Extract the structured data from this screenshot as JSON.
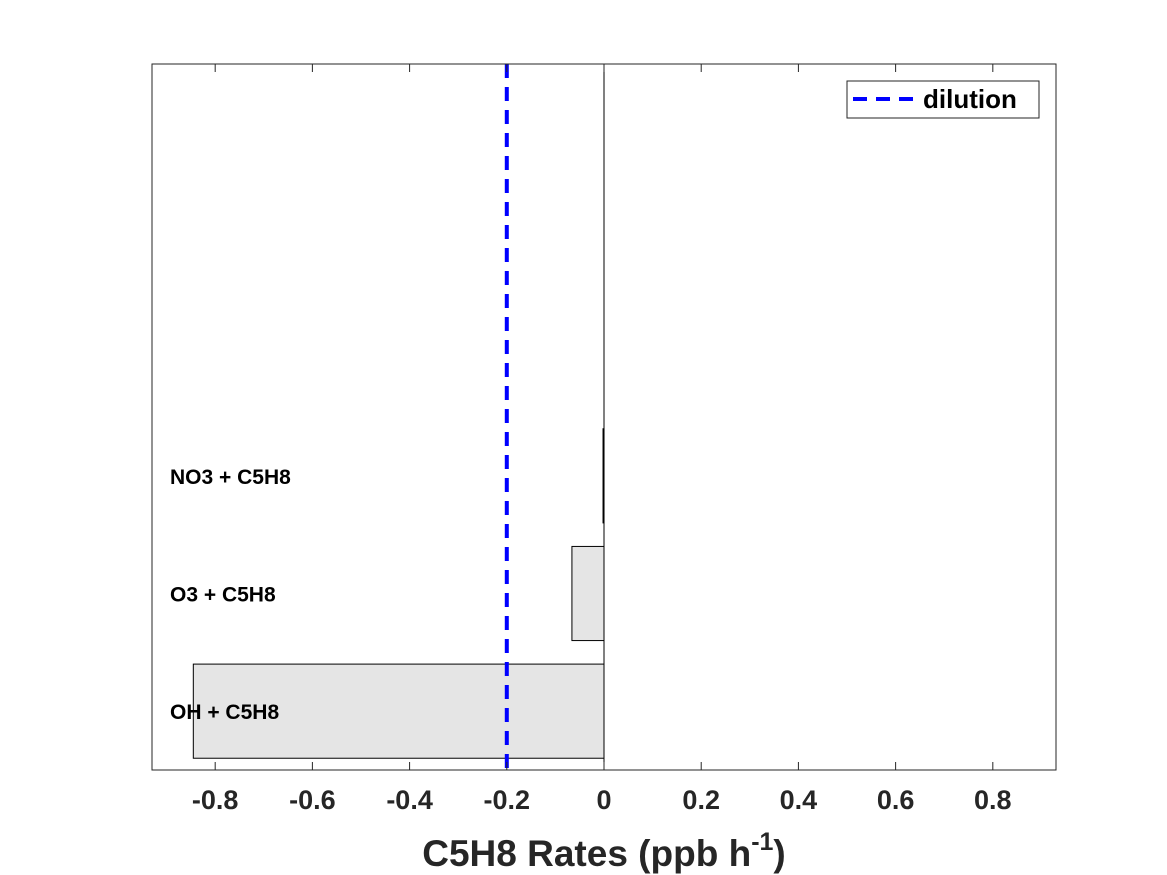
{
  "chart_data": {
    "type": "bar",
    "orientation": "horizontal",
    "categories": [
      "OH + C5H8",
      "O3 + C5H8",
      "NO3 + C5H8"
    ],
    "values": [
      -0.845,
      -0.066,
      -0.002
    ],
    "xlim": [
      -0.93,
      0.93
    ],
    "xticks": [
      -0.8,
      -0.6,
      -0.4,
      -0.2,
      0,
      0.2,
      0.4,
      0.6,
      0.8
    ],
    "xtick_labels": [
      "-0.8",
      "-0.6",
      "-0.4",
      "-0.2",
      "0",
      "0.2",
      "0.4",
      "0.6",
      "0.8"
    ],
    "xlabel_main": "C5H8 Rates (ppb h",
    "xlabel_sup": "-1",
    "xlabel_close": ")",
    "reference_line": {
      "name": "dilution",
      "x": -0.2,
      "style": "dashed",
      "color": "#0000ff"
    },
    "legend": {
      "placement": "top-right",
      "entries": [
        "dilution"
      ]
    },
    "bar_color": "#e5e5e5",
    "bar_edge_color": "#000000",
    "grid": false
  }
}
